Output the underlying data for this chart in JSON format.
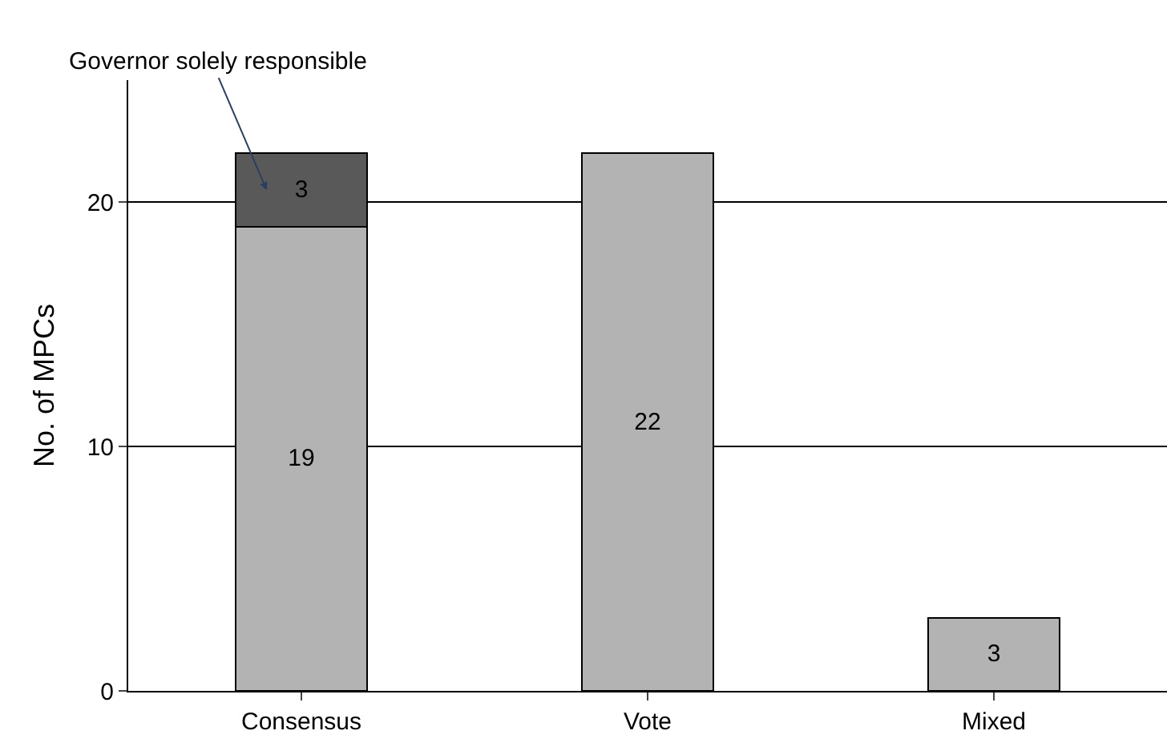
{
  "chart_data": {
    "type": "bar",
    "stacked": true,
    "ylabel": "No. of MPCs",
    "categories": [
      "Consensus",
      "Vote",
      "Mixed"
    ],
    "series": [
      {
        "color": "#b3b3b3",
        "values": [
          19,
          22,
          3
        ]
      },
      {
        "color": "#595959",
        "values": [
          3,
          null,
          null
        ]
      }
    ],
    "ylim": [
      0,
      25
    ],
    "yticks": [
      0,
      10,
      20
    ],
    "grid": "y",
    "legend": false,
    "data_labels": true,
    "annotations": [
      "Governor solely responsible"
    ]
  }
}
